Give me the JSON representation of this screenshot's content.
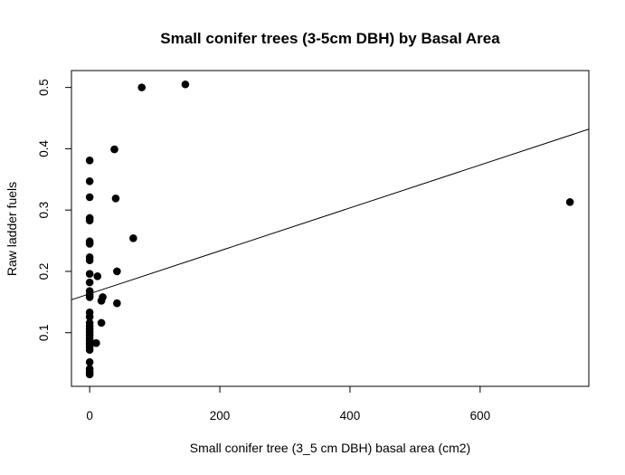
{
  "chart_data": {
    "type": "scatter",
    "title": "Small conifer trees (3-5cm DBH) by Basal Area",
    "xlabel": "Small conifer tree (3_5 cm DBH) basal area (cm2)",
    "ylabel": "Raw ladder fuels",
    "xlim": [
      -28,
      767
    ],
    "ylim": [
      0.0125,
      0.5275
    ],
    "x_ticks": [
      "0",
      "200",
      "400",
      "600"
    ],
    "y_ticks": [
      "0.1",
      "0.2",
      "0.3",
      "0.4",
      "0.5"
    ],
    "grid": false,
    "legend": "none",
    "point_color": "#000000",
    "series": [
      {
        "points": [
          [
            0,
            0.381
          ],
          [
            0,
            0.347
          ],
          [
            0,
            0.321
          ],
          [
            0,
            0.287
          ],
          [
            0,
            0.283
          ],
          [
            0,
            0.249
          ],
          [
            0,
            0.245
          ],
          [
            0,
            0.223
          ],
          [
            0,
            0.218
          ],
          [
            0,
            0.196
          ],
          [
            0,
            0.182
          ],
          [
            0,
            0.168
          ],
          [
            0,
            0.162
          ],
          [
            0,
            0.158
          ],
          [
            0,
            0.133
          ],
          [
            0,
            0.126
          ],
          [
            0,
            0.116
          ],
          [
            0,
            0.111
          ],
          [
            0,
            0.106
          ],
          [
            0,
            0.101
          ],
          [
            0,
            0.096
          ],
          [
            0,
            0.091
          ],
          [
            0,
            0.087
          ],
          [
            0,
            0.082
          ],
          [
            0,
            0.077
          ],
          [
            0,
            0.072
          ],
          [
            0,
            0.052
          ],
          [
            0,
            0.041
          ],
          [
            0,
            0.036
          ],
          [
            0,
            0.032
          ],
          [
            10,
            0.083
          ],
          [
            12,
            0.192
          ],
          [
            18,
            0.116
          ],
          [
            18,
            0.152
          ],
          [
            20,
            0.158
          ],
          [
            38,
            0.399
          ],
          [
            40,
            0.319
          ],
          [
            42,
            0.2
          ],
          [
            42,
            0.148
          ],
          [
            67,
            0.254
          ],
          [
            80,
            0.5
          ],
          [
            147,
            0.505
          ],
          [
            738,
            0.313
          ]
        ]
      }
    ],
    "fit_line": {
      "intercept": 0.1635,
      "slope": 0.00035
    }
  }
}
